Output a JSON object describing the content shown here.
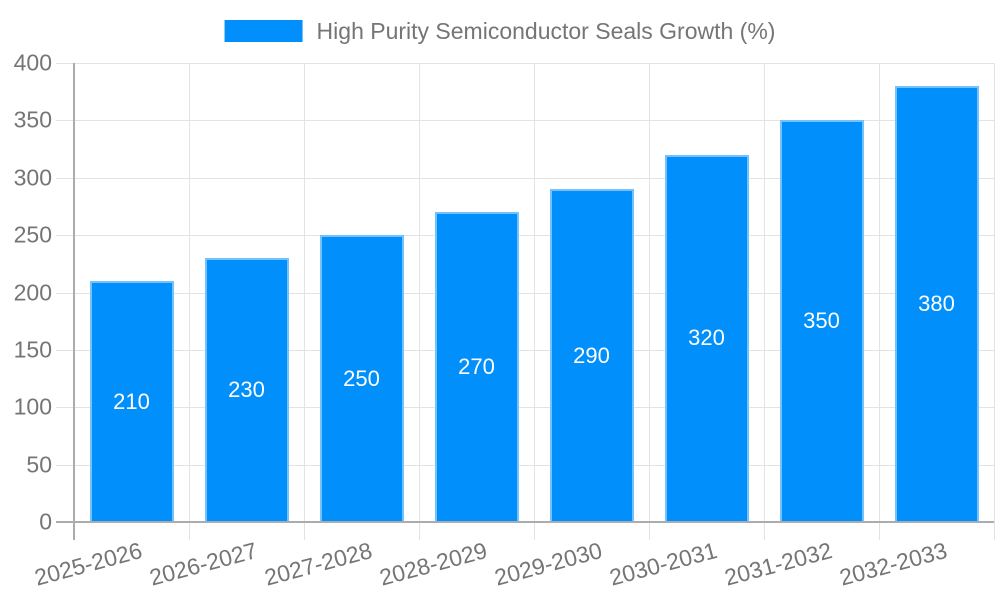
{
  "colors": {
    "accent": "#008FFB",
    "axis_text": "#757575",
    "grid": "#e3e3e3",
    "axis_line": "#acacac",
    "bar_label": "#ffffff",
    "background": "#ffffff"
  },
  "chart_data": {
    "type": "bar",
    "legend": "High Purity Semiconductor Seals Growth (%)",
    "legend_position": "top-center",
    "categories": [
      "2025-2026",
      "2026-2027",
      "2027-2028",
      "2028-2029",
      "2029-2030",
      "2030-2031",
      "2031-2032",
      "2032-2033"
    ],
    "values": [
      210,
      230,
      250,
      270,
      290,
      320,
      350,
      380
    ],
    "title": "",
    "xlabel": "",
    "ylabel": "",
    "ylim": [
      0,
      400
    ],
    "y_ticks": [
      0,
      50,
      100,
      150,
      200,
      250,
      300,
      350,
      400
    ],
    "grid": true,
    "bar_color": "#008FFB",
    "value_labels_inside_bars": true
  }
}
